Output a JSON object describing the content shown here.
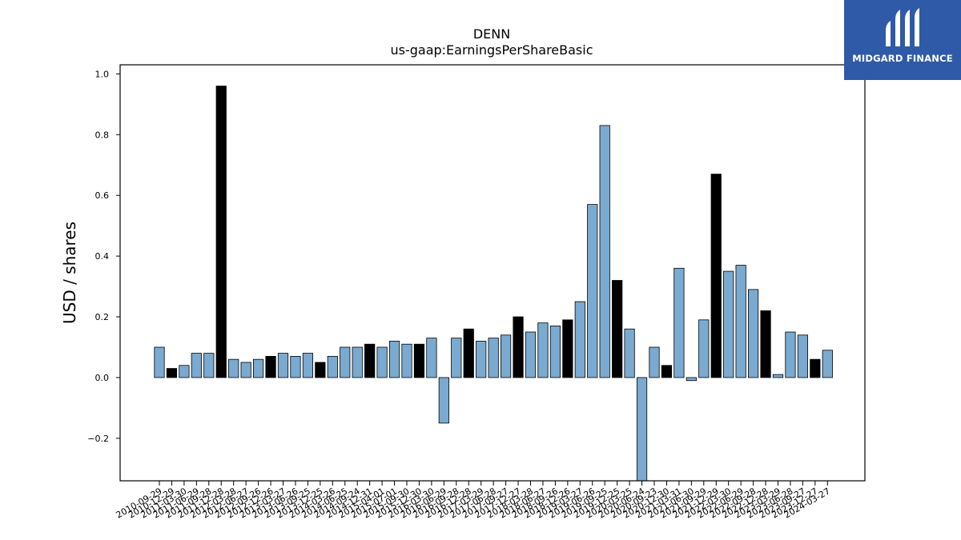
{
  "logo": {
    "brand_name": "MIDGARD FINANCE",
    "bg_color": "#2f5aa8",
    "icon": "midgard-m-logo-icon"
  },
  "colors": {
    "bar_blue": "#7aaad0",
    "bar_black": "#000000"
  },
  "chart_data": {
    "type": "bar",
    "title": "DENN",
    "subtitle": "us-gaap:EarningsPerShareBasic",
    "xlabel": "",
    "ylabel": "USD / shares",
    "ylim": [
      -0.34,
      1.03
    ],
    "yticks": [
      -0.2,
      0.0,
      0.2,
      0.4,
      0.6,
      0.8,
      1.0
    ],
    "ytick_labels": [
      "−0.2",
      "0.0",
      "0.2",
      "0.4",
      "0.6",
      "0.8",
      "1.0"
    ],
    "grid": false,
    "categories": [
      "2010-09-29",
      "2010-12-29",
      "2011-03-30",
      "2011-06-29",
      "2011-09-28",
      "2011-12-28",
      "2012-03-28",
      "2012-06-27",
      "2012-09-26",
      "2012-12-26",
      "2013-03-27",
      "2013-06-26",
      "2013-09-25",
      "2013-12-25",
      "2014-03-26",
      "2014-06-25",
      "2014-09-24",
      "2014-12-31",
      "2015-04-01",
      "2015-07-01",
      "2015-09-30",
      "2015-12-30",
      "2016-03-30",
      "2016-06-29",
      "2016-09-28",
      "2016-12-28",
      "2017-03-29",
      "2017-06-28",
      "2017-09-27",
      "2017-12-27",
      "2018-03-28",
      "2018-06-27",
      "2018-09-26",
      "2018-12-26",
      "2019-03-27",
      "2019-06-26",
      "2019-09-25",
      "2019-12-25",
      "2020-03-25",
      "2020-06-24",
      "2020-09-23",
      "2020-12-30",
      "2021-03-31",
      "2021-06-30",
      "2021-09-29",
      "2021-12-29",
      "2022-03-30",
      "2022-06-29",
      "2022-09-28",
      "2022-12-28",
      "2023-03-29",
      "2023-06-28",
      "2023-09-27",
      "2023-12-27",
      "2024-03-27"
    ],
    "values": [
      0.1,
      0.03,
      0.04,
      0.08,
      0.08,
      0.96,
      0.06,
      0.05,
      0.06,
      0.07,
      0.08,
      0.07,
      0.08,
      0.05,
      0.07,
      0.1,
      0.1,
      0.11,
      0.1,
      0.12,
      0.11,
      0.11,
      0.13,
      -0.15,
      0.13,
      0.16,
      0.12,
      0.13,
      0.14,
      0.2,
      0.15,
      0.18,
      0.17,
      0.19,
      0.25,
      0.57,
      0.83,
      0.32,
      0.16,
      -0.36,
      0.1,
      0.04,
      0.36,
      -0.01,
      0.19,
      0.67,
      0.35,
      0.37,
      0.29,
      0.22,
      0.01,
      0.15,
      0.14,
      0.06,
      0.09
    ],
    "bar_colors": [
      "blue",
      "black",
      "blue",
      "blue",
      "blue",
      "black",
      "blue",
      "blue",
      "blue",
      "black",
      "blue",
      "blue",
      "blue",
      "black",
      "blue",
      "blue",
      "blue",
      "black",
      "blue",
      "blue",
      "blue",
      "black",
      "blue",
      "blue",
      "blue",
      "black",
      "blue",
      "blue",
      "blue",
      "black",
      "blue",
      "blue",
      "blue",
      "black",
      "blue",
      "blue",
      "blue",
      "black",
      "blue",
      "blue",
      "blue",
      "black",
      "blue",
      "blue",
      "blue",
      "black",
      "blue",
      "blue",
      "blue",
      "black",
      "blue",
      "blue",
      "blue",
      "black",
      "blue"
    ],
    "xtick_labels": [
      "2010-09-29",
      "2010-12-29",
      "2011-03-30",
      "2011-06-29",
      "2011-09-28",
      "2011-12-28",
      "2012-03-28",
      "2012-06-27",
      "2012-09-26",
      "2012-12-26",
      "2013-03-27",
      "2013-06-26",
      "2013-09-25",
      "2013-12-25",
      "2014-03-26",
      "2014-06-25",
      "2014-09-24",
      "2014-12-31",
      "2015-04-01",
      "2015-07-01",
      "2015-09-30",
      "2015-12-30",
      "2016-03-30",
      "2016-06-29",
      "2016-09-28",
      "2016-12-28",
      "2017-03-29",
      "2017-06-28",
      "2017-09-27",
      "2017-12-27",
      "2018-03-28",
      "2018-06-27",
      "2018-09-26",
      "2018-12-26",
      "2019-03-27",
      "2019-06-26",
      "2019-09-25",
      "2019-12-25",
      "2020-03-25",
      "2020-06-24",
      "2020-09-23",
      "2020-12-30",
      "2021-03-31",
      "2021-06-30",
      "2021-09-29",
      "2021-12-29",
      "2022-03-30",
      "2022-06-29",
      "2022-09-28",
      "2022-12-28",
      "2023-03-29",
      "2023-06-28",
      "2023-09-27",
      "2023-12-27",
      "2024-03-27"
    ]
  }
}
